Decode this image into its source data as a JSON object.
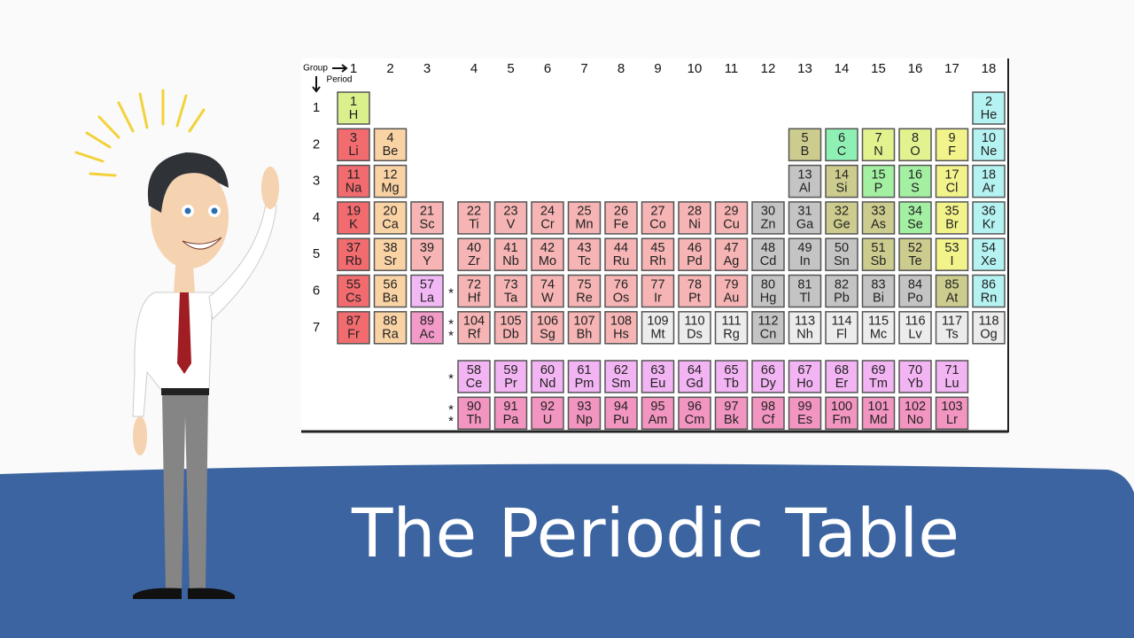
{
  "header": {
    "group_label": "Group",
    "period_label": "Period",
    "groups": [
      1,
      2,
      3,
      4,
      5,
      6,
      7,
      8,
      9,
      10,
      11,
      12,
      13,
      14,
      15,
      16,
      17,
      18
    ],
    "periods": [
      1,
      2,
      3,
      4,
      5,
      6,
      7
    ]
  },
  "table": {
    "rows": [
      {
        "cells": [
          {
            "n": 1,
            "s": "H",
            "color": "#d9f08c"
          },
          null,
          null,
          null,
          null,
          null,
          null,
          null,
          null,
          null,
          null,
          null,
          null,
          null,
          null,
          null,
          null,
          {
            "n": 2,
            "s": "He",
            "color": "#b5f2f2"
          }
        ]
      },
      {
        "cells": [
          {
            "n": 3,
            "s": "Li",
            "color": "#f26b6f"
          },
          {
            "n": 4,
            "s": "Be",
            "color": "#fad3a5"
          },
          null,
          null,
          null,
          null,
          null,
          null,
          null,
          null,
          null,
          null,
          {
            "n": 5,
            "s": "B",
            "color": "#cccc8e"
          },
          {
            "n": 6,
            "s": "C",
            "color": "#8ff0b4"
          },
          {
            "n": 7,
            "s": "N",
            "color": "#e1f28f"
          },
          {
            "n": 8,
            "s": "O",
            "color": "#e1f28f"
          },
          {
            "n": 9,
            "s": "F",
            "color": "#f3f38c"
          },
          {
            "n": 10,
            "s": "Ne",
            "color": "#b5f2f2"
          }
        ]
      },
      {
        "cells": [
          {
            "n": 11,
            "s": "Na",
            "color": "#f26b6f"
          },
          {
            "n": 12,
            "s": "Mg",
            "color": "#fad3a5"
          },
          null,
          null,
          null,
          null,
          null,
          null,
          null,
          null,
          null,
          null,
          {
            "n": 13,
            "s": "Al",
            "color": "#c4c4c4"
          },
          {
            "n": 14,
            "s": "Si",
            "color": "#cccc8e"
          },
          {
            "n": 15,
            "s": "P",
            "color": "#a3f0a3"
          },
          {
            "n": 16,
            "s": "S",
            "color": "#a3f0a3"
          },
          {
            "n": 17,
            "s": "Cl",
            "color": "#f3f38c"
          },
          {
            "n": 18,
            "s": "Ar",
            "color": "#b5f2f2"
          }
        ]
      },
      {
        "cells": [
          {
            "n": 19,
            "s": "K",
            "color": "#f26b6f"
          },
          {
            "n": 20,
            "s": "Ca",
            "color": "#fad3a5"
          },
          {
            "n": 21,
            "s": "Sc",
            "color": "#f6b4b4"
          },
          {
            "n": 22,
            "s": "Ti",
            "color": "#f6b4b4"
          },
          {
            "n": 23,
            "s": "V",
            "color": "#f6b4b4"
          },
          {
            "n": 24,
            "s": "Cr",
            "color": "#f6b4b4"
          },
          {
            "n": 25,
            "s": "Mn",
            "color": "#f6b4b4"
          },
          {
            "n": 26,
            "s": "Fe",
            "color": "#f6b4b4"
          },
          {
            "n": 27,
            "s": "Co",
            "color": "#f6b4b4"
          },
          {
            "n": 28,
            "s": "Ni",
            "color": "#f6b4b4"
          },
          {
            "n": 29,
            "s": "Cu",
            "color": "#f6b4b4"
          },
          {
            "n": 30,
            "s": "Zn",
            "color": "#c4c4c4"
          },
          {
            "n": 31,
            "s": "Ga",
            "color": "#c4c4c4"
          },
          {
            "n": 32,
            "s": "Ge",
            "color": "#cccc8e"
          },
          {
            "n": 33,
            "s": "As",
            "color": "#cccc8e"
          },
          {
            "n": 34,
            "s": "Se",
            "color": "#a3f0a3"
          },
          {
            "n": 35,
            "s": "Br",
            "color": "#f3f38c"
          },
          {
            "n": 36,
            "s": "Kr",
            "color": "#b5f2f2"
          }
        ]
      },
      {
        "cells": [
          {
            "n": 37,
            "s": "Rb",
            "color": "#f26b6f"
          },
          {
            "n": 38,
            "s": "Sr",
            "color": "#fad3a5"
          },
          {
            "n": 39,
            "s": "Y",
            "color": "#f6b4b4"
          },
          {
            "n": 40,
            "s": "Zr",
            "color": "#f6b4b4"
          },
          {
            "n": 41,
            "s": "Nb",
            "color": "#f6b4b4"
          },
          {
            "n": 42,
            "s": "Mo",
            "color": "#f6b4b4"
          },
          {
            "n": 43,
            "s": "Tc",
            "color": "#f6b4b4"
          },
          {
            "n": 44,
            "s": "Ru",
            "color": "#f6b4b4"
          },
          {
            "n": 45,
            "s": "Rh",
            "color": "#f6b4b4"
          },
          {
            "n": 46,
            "s": "Pd",
            "color": "#f6b4b4"
          },
          {
            "n": 47,
            "s": "Ag",
            "color": "#f6b4b4"
          },
          {
            "n": 48,
            "s": "Cd",
            "color": "#c4c4c4"
          },
          {
            "n": 49,
            "s": "In",
            "color": "#c4c4c4"
          },
          {
            "n": 50,
            "s": "Sn",
            "color": "#c4c4c4"
          },
          {
            "n": 51,
            "s": "Sb",
            "color": "#cccc8e"
          },
          {
            "n": 52,
            "s": "Te",
            "color": "#cccc8e"
          },
          {
            "n": 53,
            "s": "I",
            "color": "#f3f38c"
          },
          {
            "n": 54,
            "s": "Xe",
            "color": "#b5f2f2"
          }
        ]
      },
      {
        "marker": [
          "*"
        ],
        "cells": [
          {
            "n": 55,
            "s": "Cs",
            "color": "#f26b6f"
          },
          {
            "n": 56,
            "s": "Ba",
            "color": "#fad3a5"
          },
          {
            "n": 57,
            "s": "La",
            "color": "#f2b8f5"
          },
          {
            "n": 72,
            "s": "Hf",
            "color": "#f6b4b4"
          },
          {
            "n": 73,
            "s": "Ta",
            "color": "#f6b4b4"
          },
          {
            "n": 74,
            "s": "W",
            "color": "#f6b4b4"
          },
          {
            "n": 75,
            "s": "Re",
            "color": "#f6b4b4"
          },
          {
            "n": 76,
            "s": "Os",
            "color": "#f6b4b4"
          },
          {
            "n": 77,
            "s": "Ir",
            "color": "#f6b4b4"
          },
          {
            "n": 78,
            "s": "Pt",
            "color": "#f6b4b4"
          },
          {
            "n": 79,
            "s": "Au",
            "color": "#f6b4b4"
          },
          {
            "n": 80,
            "s": "Hg",
            "color": "#c4c4c4"
          },
          {
            "n": 81,
            "s": "Tl",
            "color": "#c4c4c4"
          },
          {
            "n": 82,
            "s": "Pb",
            "color": "#c4c4c4"
          },
          {
            "n": 83,
            "s": "Bi",
            "color": "#c4c4c4"
          },
          {
            "n": 84,
            "s": "Po",
            "color": "#c4c4c4"
          },
          {
            "n": 85,
            "s": "At",
            "color": "#cccc8e"
          },
          {
            "n": 86,
            "s": "Rn",
            "color": "#b5f2f2"
          }
        ]
      },
      {
        "marker": [
          "*",
          "*"
        ],
        "cells": [
          {
            "n": 87,
            "s": "Fr",
            "color": "#f26b6f"
          },
          {
            "n": 88,
            "s": "Ra",
            "color": "#fad3a5"
          },
          {
            "n": 89,
            "s": "Ac",
            "color": "#f29ac8"
          },
          {
            "n": 104,
            "s": "Rf",
            "color": "#f6b4b4"
          },
          {
            "n": 105,
            "s": "Db",
            "color": "#f6b4b4"
          },
          {
            "n": 106,
            "s": "Sg",
            "color": "#f6b4b4"
          },
          {
            "n": 107,
            "s": "Bh",
            "color": "#f6b4b4"
          },
          {
            "n": 108,
            "s": "Hs",
            "color": "#f6b4b4"
          },
          {
            "n": 109,
            "s": "Mt",
            "color": "#ececec"
          },
          {
            "n": 110,
            "s": "Ds",
            "color": "#ececec"
          },
          {
            "n": 111,
            "s": "Rg",
            "color": "#ececec"
          },
          {
            "n": 112,
            "s": "Cn",
            "color": "#c4c4c4"
          },
          {
            "n": 113,
            "s": "Nh",
            "color": "#ececec"
          },
          {
            "n": 114,
            "s": "Fl",
            "color": "#ececec"
          },
          {
            "n": 115,
            "s": "Mc",
            "color": "#ececec"
          },
          {
            "n": 116,
            "s": "Lv",
            "color": "#ececec"
          },
          {
            "n": 117,
            "s": "Ts",
            "color": "#ececec"
          },
          {
            "n": 118,
            "s": "Og",
            "color": "#ececec"
          }
        ]
      }
    ],
    "f_block": [
      {
        "marker": [
          "*"
        ],
        "cells": [
          {
            "n": 58,
            "s": "Ce",
            "color": "#f2b4f2"
          },
          {
            "n": 59,
            "s": "Pr",
            "color": "#f2b4f2"
          },
          {
            "n": 60,
            "s": "Nd",
            "color": "#f2b4f2"
          },
          {
            "n": 61,
            "s": "Pm",
            "color": "#f2b4f2"
          },
          {
            "n": 62,
            "s": "Sm",
            "color": "#f2b4f2"
          },
          {
            "n": 63,
            "s": "Eu",
            "color": "#f2b4f2"
          },
          {
            "n": 64,
            "s": "Gd",
            "color": "#f2b4f2"
          },
          {
            "n": 65,
            "s": "Tb",
            "color": "#f2b4f2"
          },
          {
            "n": 66,
            "s": "Dy",
            "color": "#f2b4f2"
          },
          {
            "n": 67,
            "s": "Ho",
            "color": "#f2b4f2"
          },
          {
            "n": 68,
            "s": "Er",
            "color": "#f2b4f2"
          },
          {
            "n": 69,
            "s": "Tm",
            "color": "#f2b4f2"
          },
          {
            "n": 70,
            "s": "Yb",
            "color": "#f2b4f2"
          },
          {
            "n": 71,
            "s": "Lu",
            "color": "#f2b4f2"
          }
        ]
      },
      {
        "marker": [
          "*",
          "*"
        ],
        "cells": [
          {
            "n": 90,
            "s": "Th",
            "color": "#f295c0"
          },
          {
            "n": 91,
            "s": "Pa",
            "color": "#f295c0"
          },
          {
            "n": 92,
            "s": "U",
            "color": "#f295c0"
          },
          {
            "n": 93,
            "s": "Np",
            "color": "#f295c0"
          },
          {
            "n": 94,
            "s": "Pu",
            "color": "#f295c0"
          },
          {
            "n": 95,
            "s": "Am",
            "color": "#f295c0"
          },
          {
            "n": 96,
            "s": "Cm",
            "color": "#f295c0"
          },
          {
            "n": 97,
            "s": "Bk",
            "color": "#f295c0"
          },
          {
            "n": 98,
            "s": "Cf",
            "color": "#f295c0"
          },
          {
            "n": 99,
            "s": "Es",
            "color": "#f295c0"
          },
          {
            "n": 100,
            "s": "Fm",
            "color": "#f295c0"
          },
          {
            "n": 101,
            "s": "Md",
            "color": "#f295c0"
          },
          {
            "n": 102,
            "s": "No",
            "color": "#f295c0"
          },
          {
            "n": 103,
            "s": "Lr",
            "color": "#f295c0"
          }
        ]
      }
    ]
  },
  "title": "The Periodic Table"
}
